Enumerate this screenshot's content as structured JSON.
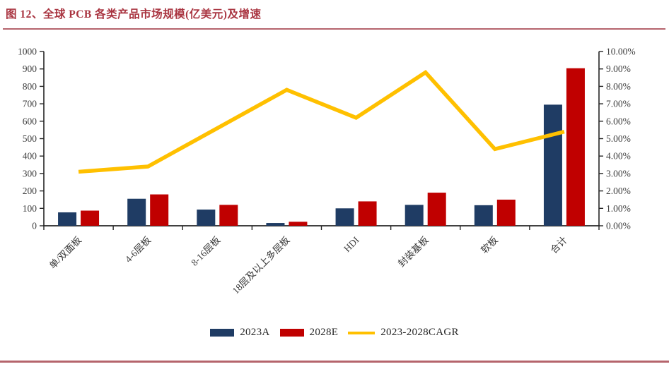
{
  "figure": {
    "title": "图 12、全球 PCB 各类产品市场规模(亿美元)及增速"
  },
  "colors": {
    "title_red": "#A93440",
    "rule_red": "#B5646C",
    "bar_2023a": "#1F3C64",
    "bar_2028e": "#C00000",
    "line_cagr": "#FFC000",
    "axis_line": "#262626",
    "axis_text": "#404040",
    "category_text": "#383838"
  },
  "legend": {
    "items": [
      {
        "label": "2023A"
      },
      {
        "label": "2028E"
      },
      {
        "label": "2023-2028CAGR"
      }
    ]
  },
  "chart_data": {
    "type": "bar+line",
    "title": "全球PCB各类产品市场规模(亿美元)及增速",
    "categories": [
      "单/双面板",
      "4-6层板",
      "8-16层板",
      "18层及以上多层板",
      "HDI",
      "封装基板",
      "软板",
      "合计"
    ],
    "series": [
      {
        "name": "2023A",
        "type": "bar",
        "axis": "left",
        "color_key": "bar_2023a",
        "values": [
          77,
          155,
          93,
          16,
          100,
          120,
          118,
          695
        ]
      },
      {
        "name": "2028E",
        "type": "bar",
        "axis": "left",
        "color_key": "bar_2028e",
        "values": [
          87,
          180,
          120,
          23,
          140,
          190,
          150,
          904
        ]
      },
      {
        "name": "2023-2028CAGR",
        "type": "line",
        "axis": "right",
        "unit": "%",
        "color_key": "line_cagr",
        "values": [
          3.1,
          3.4,
          5.6,
          7.8,
          6.2,
          8.8,
          4.4,
          5.4
        ]
      }
    ],
    "left_axis": {
      "min": 0,
      "max": 1000,
      "step": 100
    },
    "right_axis": {
      "min": 0,
      "max": 10,
      "step": 1,
      "decimals": 2,
      "suffix": "%"
    },
    "grid": false,
    "legend_position": "bottom"
  }
}
